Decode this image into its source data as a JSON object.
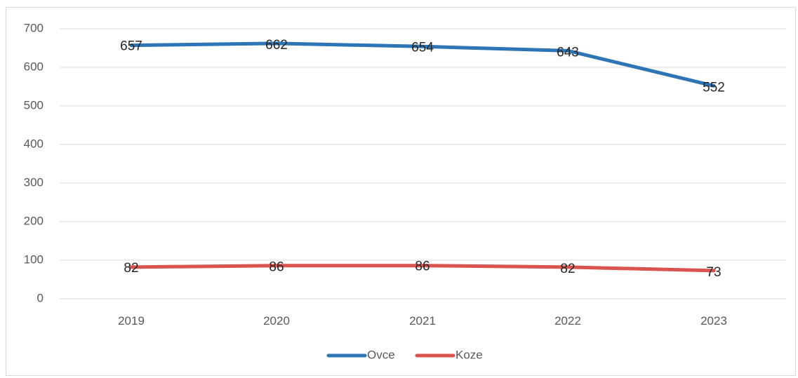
{
  "chart_data": {
    "type": "line",
    "categories": [
      "2019",
      "2020",
      "2021",
      "2022",
      "2023"
    ],
    "series": [
      {
        "name": "Ovce",
        "color": "#2e75b6",
        "values": [
          657,
          662,
          654,
          643,
          552
        ]
      },
      {
        "name": "Koze",
        "color": "#d9534f",
        "values": [
          82,
          86,
          86,
          82,
          73
        ]
      }
    ],
    "ylim": [
      0,
      700
    ],
    "yticks": [
      "0",
      "100",
      "200",
      "300",
      "400",
      "500",
      "600",
      "700"
    ],
    "grid": true,
    "legend_position": "bottom",
    "data_labels": true
  }
}
